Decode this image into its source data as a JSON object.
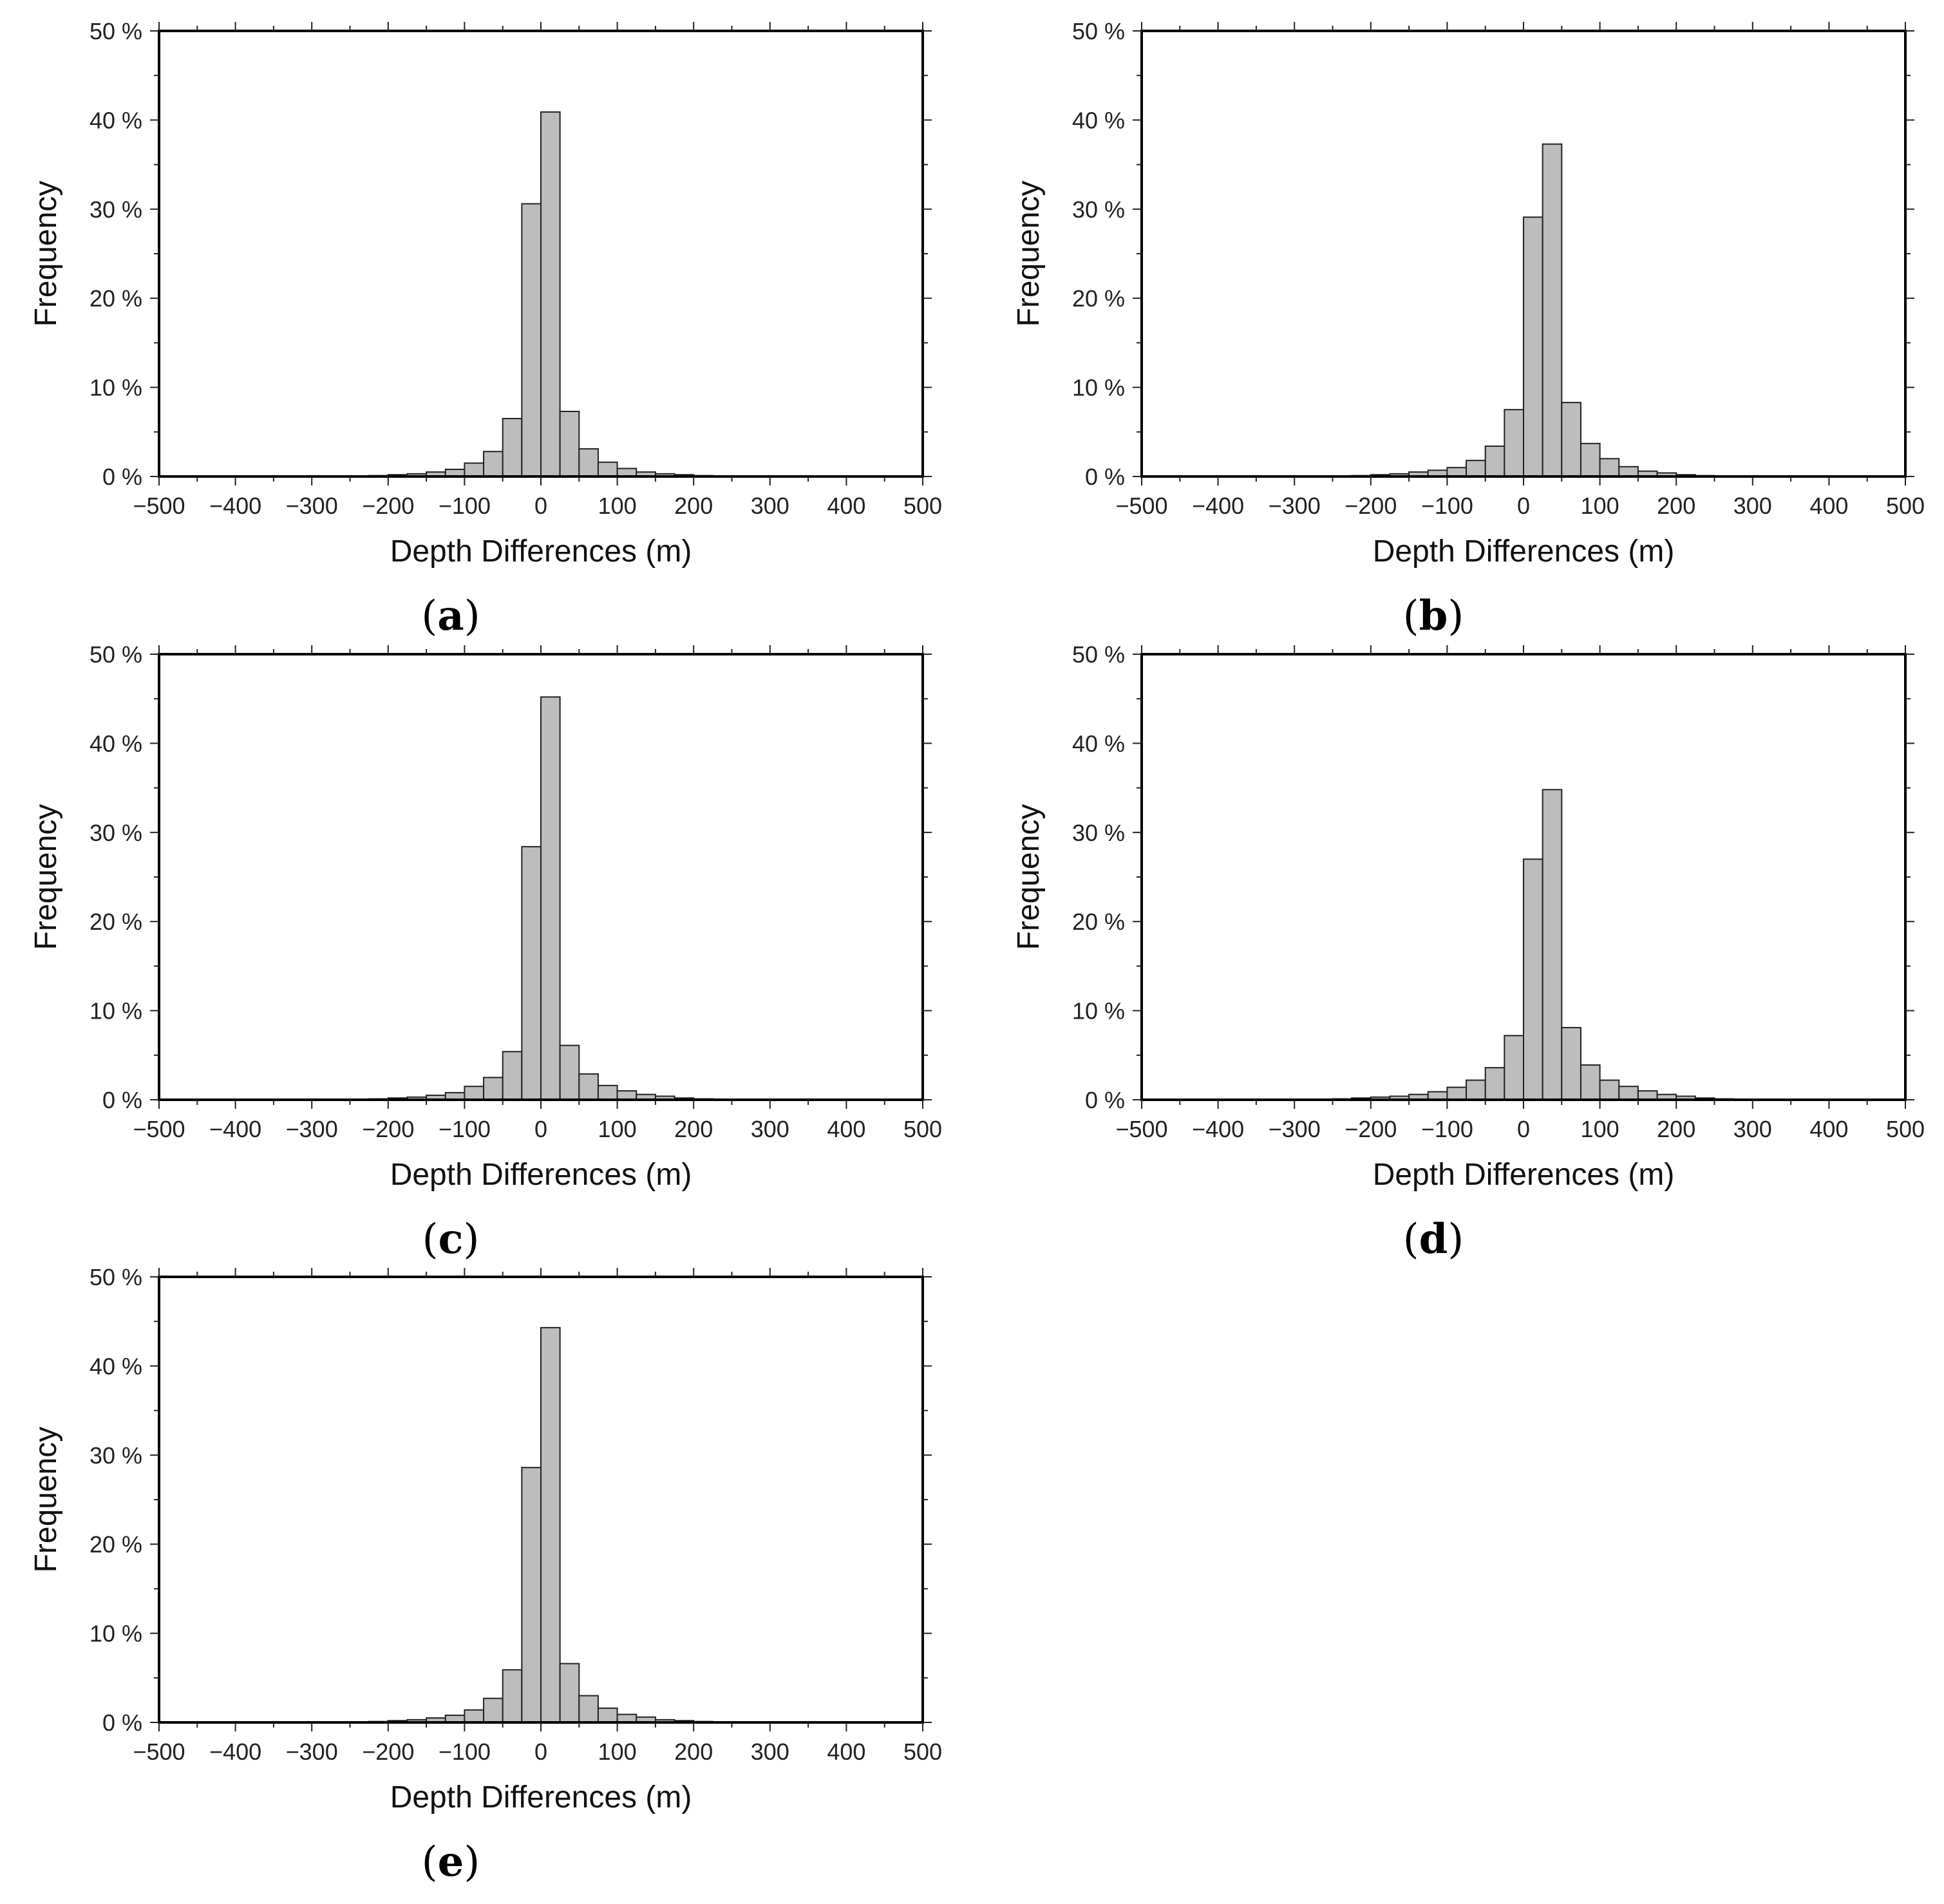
{
  "chart_data": [
    {
      "panel_label": "a",
      "type": "bar",
      "xlabel": "Depth Differences (m)",
      "ylabel": "Frequency",
      "xlim": [
        -500,
        500
      ],
      "ylim": [
        0,
        50
      ],
      "x_ticks": [
        "−500",
        "−400",
        "−300",
        "−200",
        "−100",
        "0",
        "100",
        "200",
        "300",
        "400",
        "500"
      ],
      "y_ticks": [
        "0 %",
        "10 %",
        "20 %",
        "30 %",
        "40 %",
        "50 %"
      ],
      "bin_width": 25,
      "bin_left_edges": [
        -250,
        -225,
        -200,
        -175,
        -150,
        -125,
        -100,
        -75,
        -50,
        -25,
        0,
        25,
        50,
        75,
        100,
        125,
        150,
        175,
        200,
        225,
        250
      ],
      "values": [
        0.05,
        0.1,
        0.2,
        0.3,
        0.5,
        0.8,
        1.5,
        2.8,
        6.5,
        30.6,
        40.9,
        7.3,
        3.1,
        1.6,
        0.9,
        0.5,
        0.3,
        0.2,
        0.1,
        0.05,
        0.03
      ]
    },
    {
      "panel_label": "b",
      "type": "bar",
      "xlabel": "Depth Differences (m)",
      "ylabel": "Frequency",
      "xlim": [
        -500,
        500
      ],
      "ylim": [
        0,
        50
      ],
      "x_ticks": [
        "−500",
        "−400",
        "−300",
        "−200",
        "−100",
        "0",
        "100",
        "200",
        "300",
        "400",
        "500"
      ],
      "y_ticks": [
        "0 %",
        "10 %",
        "20 %",
        "30 %",
        "40 %",
        "50 %"
      ],
      "bin_width": 25,
      "bin_left_edges": [
        -250,
        -225,
        -200,
        -175,
        -150,
        -125,
        -100,
        -75,
        -50,
        -25,
        0,
        25,
        50,
        75,
        100,
        125,
        150,
        175,
        200,
        225,
        250
      ],
      "values": [
        0.05,
        0.1,
        0.2,
        0.3,
        0.5,
        0.7,
        1.0,
        1.8,
        3.4,
        7.5,
        29.1,
        37.3,
        8.3,
        3.7,
        2.0,
        1.1,
        0.6,
        0.4,
        0.2,
        0.1,
        0.05
      ]
    },
    {
      "panel_label": "c",
      "type": "bar",
      "xlabel": "Depth Differences (m)",
      "ylabel": "Frequency",
      "xlim": [
        -500,
        500
      ],
      "ylim": [
        0,
        50
      ],
      "x_ticks": [
        "−500",
        "−400",
        "−300",
        "−200",
        "−100",
        "0",
        "100",
        "200",
        "300",
        "400",
        "500"
      ],
      "y_ticks": [
        "0 %",
        "10 %",
        "20 %",
        "30 %",
        "40 %",
        "50 %"
      ],
      "bin_width": 25,
      "bin_left_edges": [
        -250,
        -225,
        -200,
        -175,
        -150,
        -125,
        -100,
        -75,
        -50,
        -25,
        0,
        25,
        50,
        75,
        100,
        125,
        150,
        175,
        200,
        225,
        250
      ],
      "values": [
        0.05,
        0.1,
        0.2,
        0.3,
        0.5,
        0.8,
        1.5,
        2.5,
        5.4,
        28.4,
        45.2,
        6.1,
        2.9,
        1.6,
        1.0,
        0.6,
        0.4,
        0.2,
        0.1,
        0.05,
        0.03
      ]
    },
    {
      "panel_label": "d",
      "type": "bar",
      "xlabel": "Depth Differences (m)",
      "ylabel": "Frequency",
      "xlim": [
        -500,
        500
      ],
      "ylim": [
        0,
        50
      ],
      "x_ticks": [
        "−500",
        "−400",
        "−300",
        "−200",
        "−100",
        "0",
        "100",
        "200",
        "300",
        "400",
        "500"
      ],
      "y_ticks": [
        "0 %",
        "10 %",
        "20 %",
        "30 %",
        "40 %",
        "50 %"
      ],
      "bin_width": 25,
      "bin_left_edges": [
        -275,
        -250,
        -225,
        -200,
        -175,
        -150,
        -125,
        -100,
        -75,
        -50,
        -25,
        0,
        25,
        50,
        75,
        100,
        125,
        150,
        175,
        200,
        225,
        250,
        275
      ],
      "values": [
        0.05,
        0.1,
        0.2,
        0.3,
        0.4,
        0.6,
        0.9,
        1.4,
        2.2,
        3.6,
        7.2,
        27.0,
        34.8,
        8.1,
        3.9,
        2.2,
        1.5,
        1.0,
        0.6,
        0.4,
        0.2,
        0.1,
        0.05
      ]
    },
    {
      "panel_label": "e",
      "type": "bar",
      "xlabel": "Depth Differences (m)",
      "ylabel": "Frequency",
      "xlim": [
        -500,
        500
      ],
      "ylim": [
        0,
        50
      ],
      "x_ticks": [
        "−500",
        "−400",
        "−300",
        "−200",
        "−100",
        "0",
        "100",
        "200",
        "300",
        "400",
        "500"
      ],
      "y_ticks": [
        "0 %",
        "10 %",
        "20 %",
        "30 %",
        "40 %",
        "50 %"
      ],
      "bin_width": 25,
      "bin_left_edges": [
        -250,
        -225,
        -200,
        -175,
        -150,
        -125,
        -100,
        -75,
        -50,
        -25,
        0,
        25,
        50,
        75,
        100,
        125,
        150,
        175,
        200,
        225,
        250
      ],
      "values": [
        0.05,
        0.1,
        0.2,
        0.3,
        0.5,
        0.8,
        1.4,
        2.7,
        5.9,
        28.6,
        44.3,
        6.6,
        3.0,
        1.6,
        0.9,
        0.6,
        0.3,
        0.2,
        0.1,
        0.05,
        0.03
      ]
    }
  ]
}
